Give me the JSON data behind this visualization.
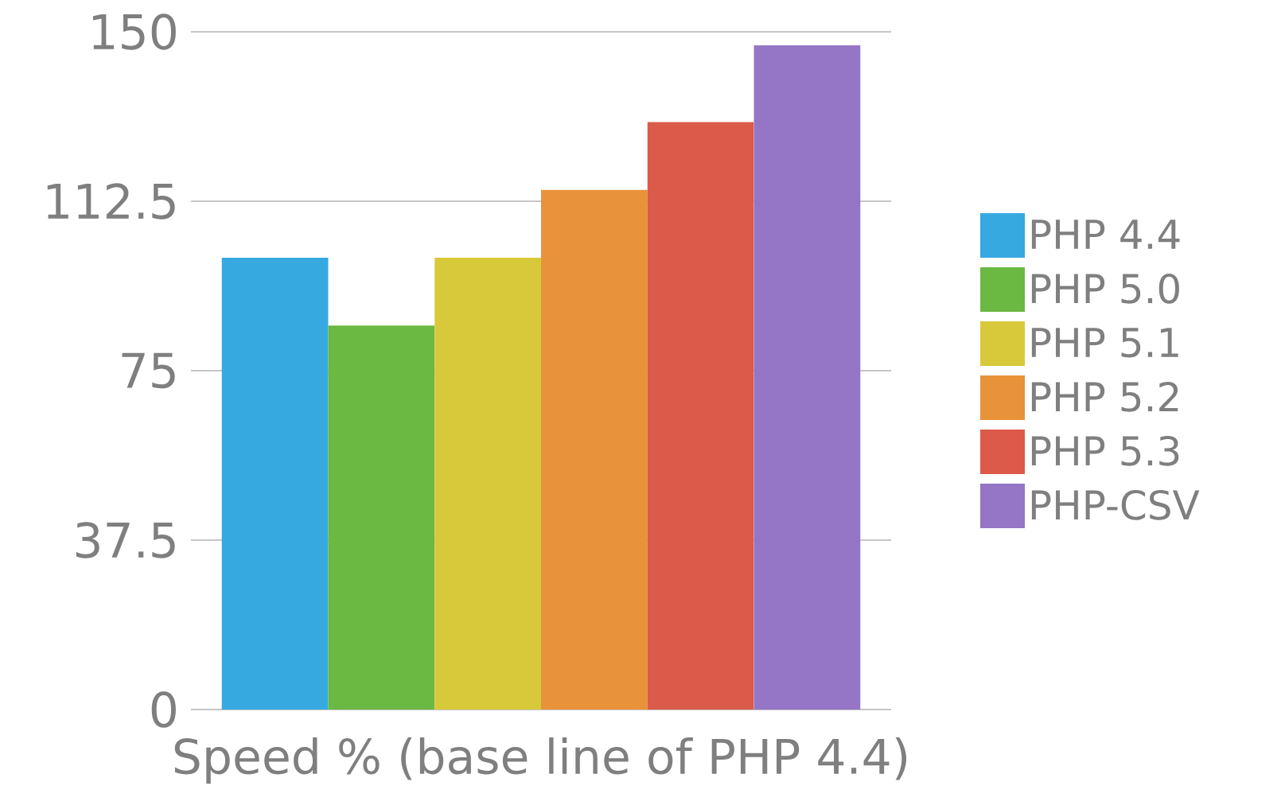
{
  "chart_data": {
    "type": "bar",
    "xlabel": "Speed  % (base line of PHP 4.4)",
    "categories": [
      null
    ],
    "series": [
      {
        "name": "PHP 4.4",
        "color": "#36a9e1",
        "values": [
          100
        ]
      },
      {
        "name": "PHP 5.0",
        "color": "#6bb843",
        "values": [
          85
        ]
      },
      {
        "name": "PHP 5.1",
        "color": "#d8c93a",
        "values": [
          100
        ]
      },
      {
        "name": "PHP 5.2",
        "color": "#e8923a",
        "values": [
          115
        ]
      },
      {
        "name": "PHP 5.3",
        "color": "#dc5a4a",
        "values": [
          130
        ]
      },
      {
        "name": "PHP-CSV",
        "color": "#9575c5",
        "values": [
          147
        ]
      }
    ],
    "ylim": [
      0,
      150
    ],
    "yticks": [
      0,
      37.5,
      75,
      112.5,
      150
    ],
    "grid": "y",
    "legend": "right"
  }
}
